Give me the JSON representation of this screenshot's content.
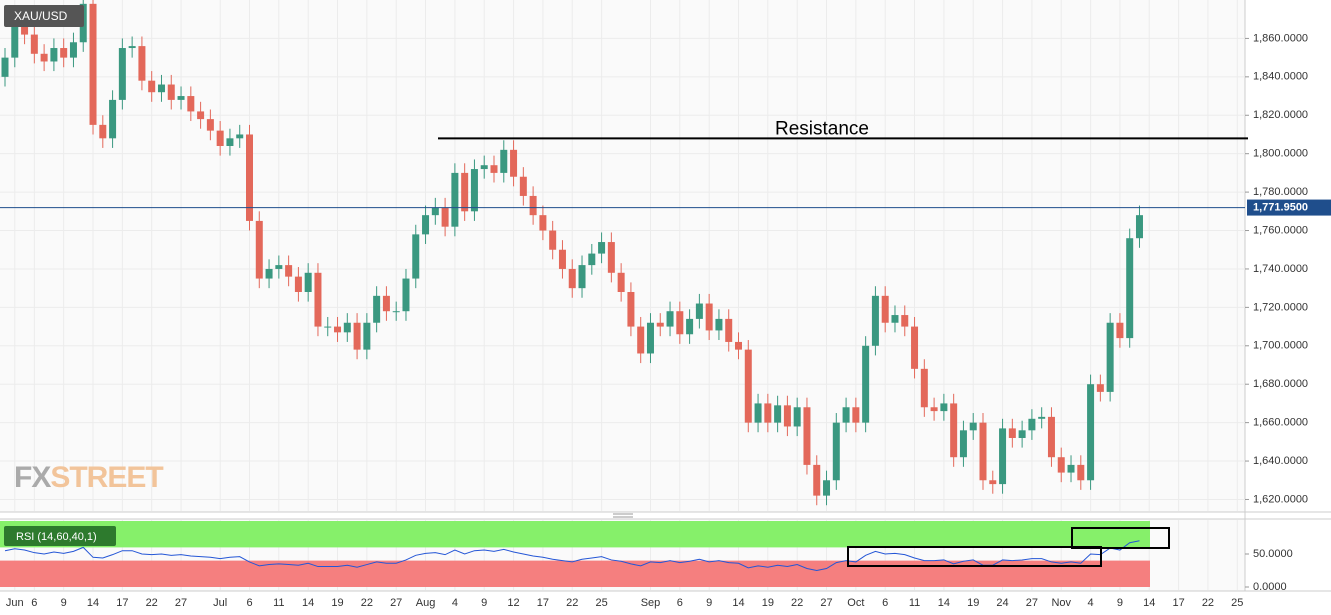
{
  "chart_data": {
    "type": "candlestick",
    "title": "XAU/USD",
    "watermark": [
      "FX",
      "STREET"
    ],
    "categories": [
      null,
      "Jun",
      null,
      "6",
      null,
      null,
      "9",
      null,
      null,
      "14",
      null,
      null,
      "17",
      null,
      null,
      "22",
      null,
      null,
      "27",
      null,
      null,
      null,
      "Jul",
      null,
      null,
      "6",
      null,
      null,
      "11",
      null,
      null,
      "14",
      null,
      null,
      "19",
      null,
      null,
      "22",
      null,
      null,
      "27",
      null,
      null,
      "Aug",
      null,
      null,
      "4",
      null,
      null,
      "9",
      null,
      null,
      "12",
      null,
      null,
      "17",
      null,
      null,
      "22",
      null,
      null,
      "25",
      null,
      null,
      null,
      null,
      "Sep",
      null,
      null,
      "6",
      null,
      null,
      "9",
      null,
      null,
      "14",
      null,
      null,
      "19",
      null,
      null,
      "22",
      null,
      null,
      "27",
      null,
      null,
      "Oct",
      null,
      null,
      "6",
      null,
      null,
      "11",
      null,
      null,
      "14",
      null,
      null,
      "19",
      null,
      null,
      "24",
      null,
      null,
      "27",
      null,
      null,
      "Nov",
      null,
      null,
      "4",
      null,
      null,
      "9",
      null,
      null,
      "14",
      null,
      null,
      "17",
      null,
      null,
      "22",
      null,
      null,
      "25"
    ],
    "open": [
      1840,
      1850,
      1868,
      1862,
      1852,
      1848,
      1855,
      1850,
      1858,
      1878,
      1815,
      1808,
      1828,
      1855,
      1856,
      1838,
      1832,
      1836,
      1828,
      1830,
      1822,
      1818,
      1812,
      1804,
      1808,
      1810,
      1765,
      1735,
      1740,
      1742,
      1736,
      1728,
      1738,
      1710,
      1710,
      1707,
      1712,
      1698,
      1712,
      1726,
      1718,
      1718,
      1735,
      1758,
      1768,
      1772,
      1762,
      1790,
      1770,
      1792,
      1794,
      1790,
      1802,
      1788,
      1778,
      1768,
      1760,
      1750,
      1740,
      1730,
      1742,
      1748,
      1754,
      1738,
      1728,
      1710,
      1696,
      1712,
      1710,
      1718,
      1706,
      1714,
      1722,
      1708,
      1714,
      1702,
      1698,
      1660,
      1670,
      1660,
      1669,
      1658,
      1668,
      1638,
      1622,
      1630,
      1660,
      1668,
      1660,
      1700,
      1726,
      1712,
      1716,
      1710,
      1688,
      1668,
      1666,
      1670,
      1642,
      1656,
      1660,
      1630,
      1628,
      1657,
      1652,
      1656,
      1662,
      1663,
      1642,
      1634,
      1638,
      1630,
      1680,
      1676,
      1712,
      1704,
      1756,
      null,
      null,
      null,
      null,
      null,
      null,
      null,
      null,
      null,
      null
    ],
    "high": [
      1855,
      1873,
      1873,
      1867,
      1857,
      1860,
      1860,
      1863,
      1883,
      1883,
      1820,
      1833,
      1860,
      1861,
      1861,
      1843,
      1841,
      1841,
      1835,
      1835,
      1827,
      1823,
      1817,
      1813,
      1815,
      1815,
      1770,
      1745,
      1747,
      1747,
      1741,
      1743,
      1743,
      1715,
      1715,
      1717,
      1717,
      1717,
      1731,
      1731,
      1723,
      1740,
      1763,
      1773,
      1777,
      1777,
      1795,
      1795,
      1797,
      1799,
      1799,
      1807,
      1807,
      1793,
      1783,
      1773,
      1765,
      1755,
      1745,
      1747,
      1753,
      1759,
      1759,
      1743,
      1733,
      1715,
      1717,
      1717,
      1723,
      1723,
      1719,
      1727,
      1727,
      1719,
      1719,
      1707,
      1703,
      1675,
      1675,
      1674,
      1674,
      1673,
      1673,
      1643,
      1635,
      1665,
      1673,
      1673,
      1705,
      1731,
      1731,
      1721,
      1721,
      1715,
      1693,
      1673,
      1675,
      1675,
      1661,
      1665,
      1665,
      1635,
      1662,
      1662,
      1661,
      1667,
      1668,
      1668,
      1647,
      1643,
      1643,
      1685,
      1685,
      1717,
      1717,
      1761,
      1773,
      null,
      null,
      null,
      null,
      null,
      null,
      null,
      null,
      null,
      null
    ],
    "low": [
      1835,
      1845,
      1857,
      1847,
      1843,
      1843,
      1845,
      1845,
      1853,
      1810,
      1803,
      1803,
      1823,
      1850,
      1833,
      1827,
      1827,
      1823,
      1823,
      1817,
      1813,
      1807,
      1799,
      1799,
      1803,
      1760,
      1730,
      1730,
      1735,
      1731,
      1723,
      1723,
      1705,
      1705,
      1702,
      1702,
      1693,
      1693,
      1707,
      1713,
      1713,
      1713,
      1730,
      1753,
      1763,
      1757,
      1757,
      1765,
      1765,
      1787,
      1785,
      1785,
      1783,
      1773,
      1763,
      1755,
      1745,
      1735,
      1725,
      1725,
      1737,
      1743,
      1733,
      1723,
      1705,
      1691,
      1691,
      1705,
      1705,
      1701,
      1701,
      1709,
      1703,
      1703,
      1697,
      1693,
      1655,
      1655,
      1655,
      1655,
      1653,
      1653,
      1633,
      1617,
      1617,
      1625,
      1655,
      1655,
      1655,
      1695,
      1707,
      1707,
      1705,
      1683,
      1663,
      1661,
      1661,
      1637,
      1637,
      1651,
      1625,
      1623,
      1623,
      1647,
      1647,
      1651,
      1657,
      1637,
      1629,
      1629,
      1625,
      1625,
      1671,
      1671,
      1699,
      1699,
      1751,
      null,
      null,
      null,
      null,
      null,
      null,
      null,
      null,
      null,
      null
    ],
    "close": [
      1850,
      1868,
      1862,
      1852,
      1848,
      1855,
      1850,
      1858,
      1878,
      1815,
      1808,
      1828,
      1855,
      1856,
      1838,
      1832,
      1836,
      1828,
      1830,
      1822,
      1818,
      1812,
      1804,
      1808,
      1810,
      1765,
      1735,
      1740,
      1742,
      1736,
      1728,
      1738,
      1710,
      1710,
      1707,
      1712,
      1698,
      1712,
      1726,
      1718,
      1718,
      1735,
      1758,
      1768,
      1772,
      1762,
      1790,
      1770,
      1792,
      1794,
      1790,
      1802,
      1788,
      1778,
      1768,
      1760,
      1750,
      1740,
      1730,
      1742,
      1748,
      1754,
      1738,
      1728,
      1710,
      1696,
      1712,
      1710,
      1718,
      1706,
      1714,
      1722,
      1708,
      1714,
      1702,
      1698,
      1660,
      1670,
      1660,
      1669,
      1658,
      1668,
      1638,
      1622,
      1630,
      1660,
      1668,
      1660,
      1700,
      1726,
      1712,
      1716,
      1710,
      1688,
      1668,
      1666,
      1670,
      1642,
      1656,
      1660,
      1630,
      1628,
      1657,
      1652,
      1656,
      1662,
      1663,
      1642,
      1634,
      1638,
      1630,
      1680,
      1676,
      1712,
      1704,
      1756,
      1768,
      null,
      null,
      null,
      null,
      null,
      null,
      null,
      null,
      null,
      null
    ],
    "up_color": "#3a9880",
    "down_color": "#e3685a",
    "ylim": [
      1614,
      1880
    ],
    "yticks": [
      {
        "value": 1620,
        "label": "1,620.0000"
      },
      {
        "value": 1640,
        "label": "1,640.0000"
      },
      {
        "value": 1660,
        "label": "1,660.0000"
      },
      {
        "value": 1680,
        "label": "1,680.0000"
      },
      {
        "value": 1700,
        "label": "1,700.0000"
      },
      {
        "value": 1720,
        "label": "1,720.0000"
      },
      {
        "value": 1740,
        "label": "1,740.0000"
      },
      {
        "value": 1760,
        "label": "1,760.0000"
      },
      {
        "value": 1780,
        "label": "1,780.0000"
      },
      {
        "value": 1800,
        "label": "1,800.0000"
      },
      {
        "value": 1820,
        "label": "1,820.0000"
      },
      {
        "value": 1840,
        "label": "1,840.0000"
      },
      {
        "value": 1860,
        "label": "1,860.0000"
      }
    ],
    "grid": true,
    "last_price": {
      "value": 1771.95,
      "label": "1,771.9500",
      "color": "#1f4e8c"
    },
    "resistance": {
      "text": "Resistance",
      "value": 1808
    },
    "rsi": {
      "name": "RSI (14,60,40,1)",
      "overbought": 60,
      "oversold": 40,
      "color": "#2456d6",
      "values": [
        55,
        58,
        56,
        52,
        50,
        53,
        51,
        54,
        60,
        45,
        44,
        49,
        55,
        55,
        50,
        49,
        50,
        48,
        49,
        47,
        46,
        45,
        43,
        45,
        46,
        38,
        32,
        34,
        35,
        34,
        33,
        36,
        31,
        31,
        31,
        33,
        30,
        34,
        38,
        36,
        36,
        41,
        48,
        51,
        52,
        49,
        56,
        50,
        55,
        56,
        54,
        57,
        53,
        50,
        47,
        45,
        42,
        40,
        38,
        42,
        44,
        46,
        41,
        39,
        35,
        32,
        38,
        37,
        40,
        37,
        39,
        42,
        38,
        40,
        37,
        36,
        29,
        32,
        30,
        33,
        31,
        34,
        28,
        25,
        28,
        37,
        40,
        38,
        48,
        54,
        50,
        51,
        49,
        44,
        40,
        40,
        41,
        35,
        39,
        41,
        33,
        33,
        41,
        40,
        41,
        43,
        43,
        38,
        36,
        38,
        36,
        50,
        49,
        59,
        56,
        67,
        70,
        null,
        null,
        null,
        null,
        null,
        null,
        null,
        null,
        null,
        null
      ],
      "ylim": [
        0,
        100
      ],
      "yticks": [
        {
          "value": 0,
          "label": "0.0000"
        },
        {
          "value": 50,
          "label": "50.0000"
        }
      ]
    }
  }
}
